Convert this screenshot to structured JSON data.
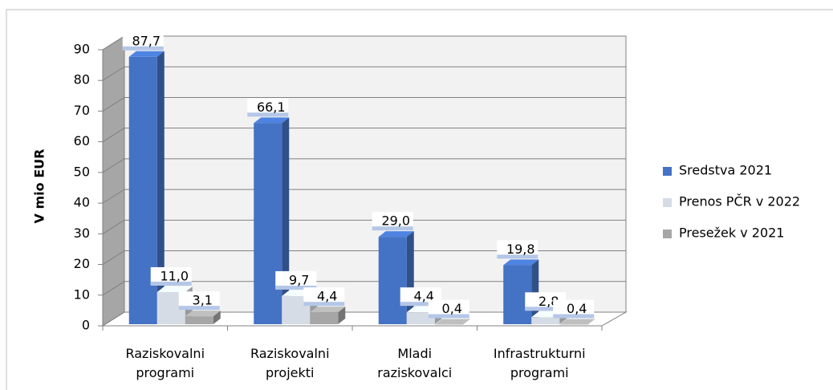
{
  "chart_data": {
    "type": "bar3d",
    "y_label": "V mio EUR",
    "categories": [
      "Raziskovalni programi",
      "Raziskovalni projekti",
      "Mladi raziskovalci",
      "Infrastrukturni programi"
    ],
    "series": [
      {
        "name": "Sredstva 2021",
        "color": "#4472c4",
        "values": [
          87.7,
          66.1,
          29.0,
          19.8
        ],
        "value_labels": [
          "87,7",
          "66,1",
          "29,0",
          "19,8"
        ]
      },
      {
        "name": "Prenos PČR v 2022",
        "color": "#d6dce5",
        "values": [
          11.0,
          9.7,
          4.4,
          2.8
        ],
        "value_labels": [
          "11,0",
          "9,7",
          "4,4",
          "2,8"
        ]
      },
      {
        "name": "Presežek v 2021",
        "color": "#a6a6a6",
        "values": [
          3.1,
          4.4,
          0.4,
          0.4
        ],
        "value_labels": [
          "3,1",
          "4,4",
          "0,4",
          "0,4"
        ]
      }
    ],
    "ylim": [
      0,
      90
    ],
    "yticks": [
      0,
      10,
      20,
      30,
      40,
      50,
      60,
      70,
      80,
      90
    ],
    "grid": true,
    "legend": "right"
  }
}
